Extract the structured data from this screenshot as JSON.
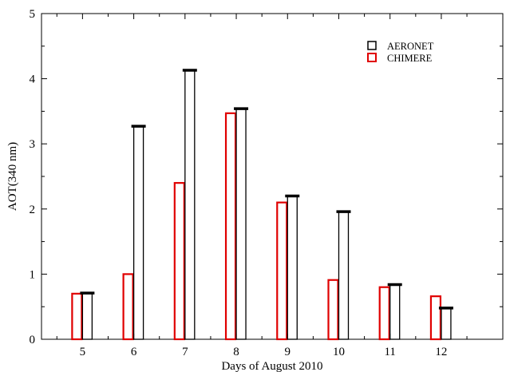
{
  "chart_data": {
    "type": "bar",
    "title": "",
    "xlabel": "Days of August 2010",
    "ylabel": "AOT(340 nm)",
    "categories": [
      "5",
      "6",
      "7",
      "8",
      "9",
      "10",
      "11",
      "12"
    ],
    "xlim": [
      4.2,
      13.2
    ],
    "ylim": [
      0,
      5
    ],
    "yticks": [
      "0",
      "1",
      "2",
      "3",
      "4",
      "5"
    ],
    "grid": false,
    "legend_position": "top-right",
    "series": [
      {
        "name": "CHIMERE",
        "color": "#e00000",
        "values": [
          0.7,
          1.0,
          2.4,
          3.47,
          2.1,
          0.91,
          0.8,
          0.66
        ]
      },
      {
        "name": "AERONET",
        "color": "#000000",
        "values": [
          0.71,
          3.27,
          4.13,
          3.54,
          2.2,
          1.96,
          0.84,
          0.48
        ]
      }
    ]
  }
}
